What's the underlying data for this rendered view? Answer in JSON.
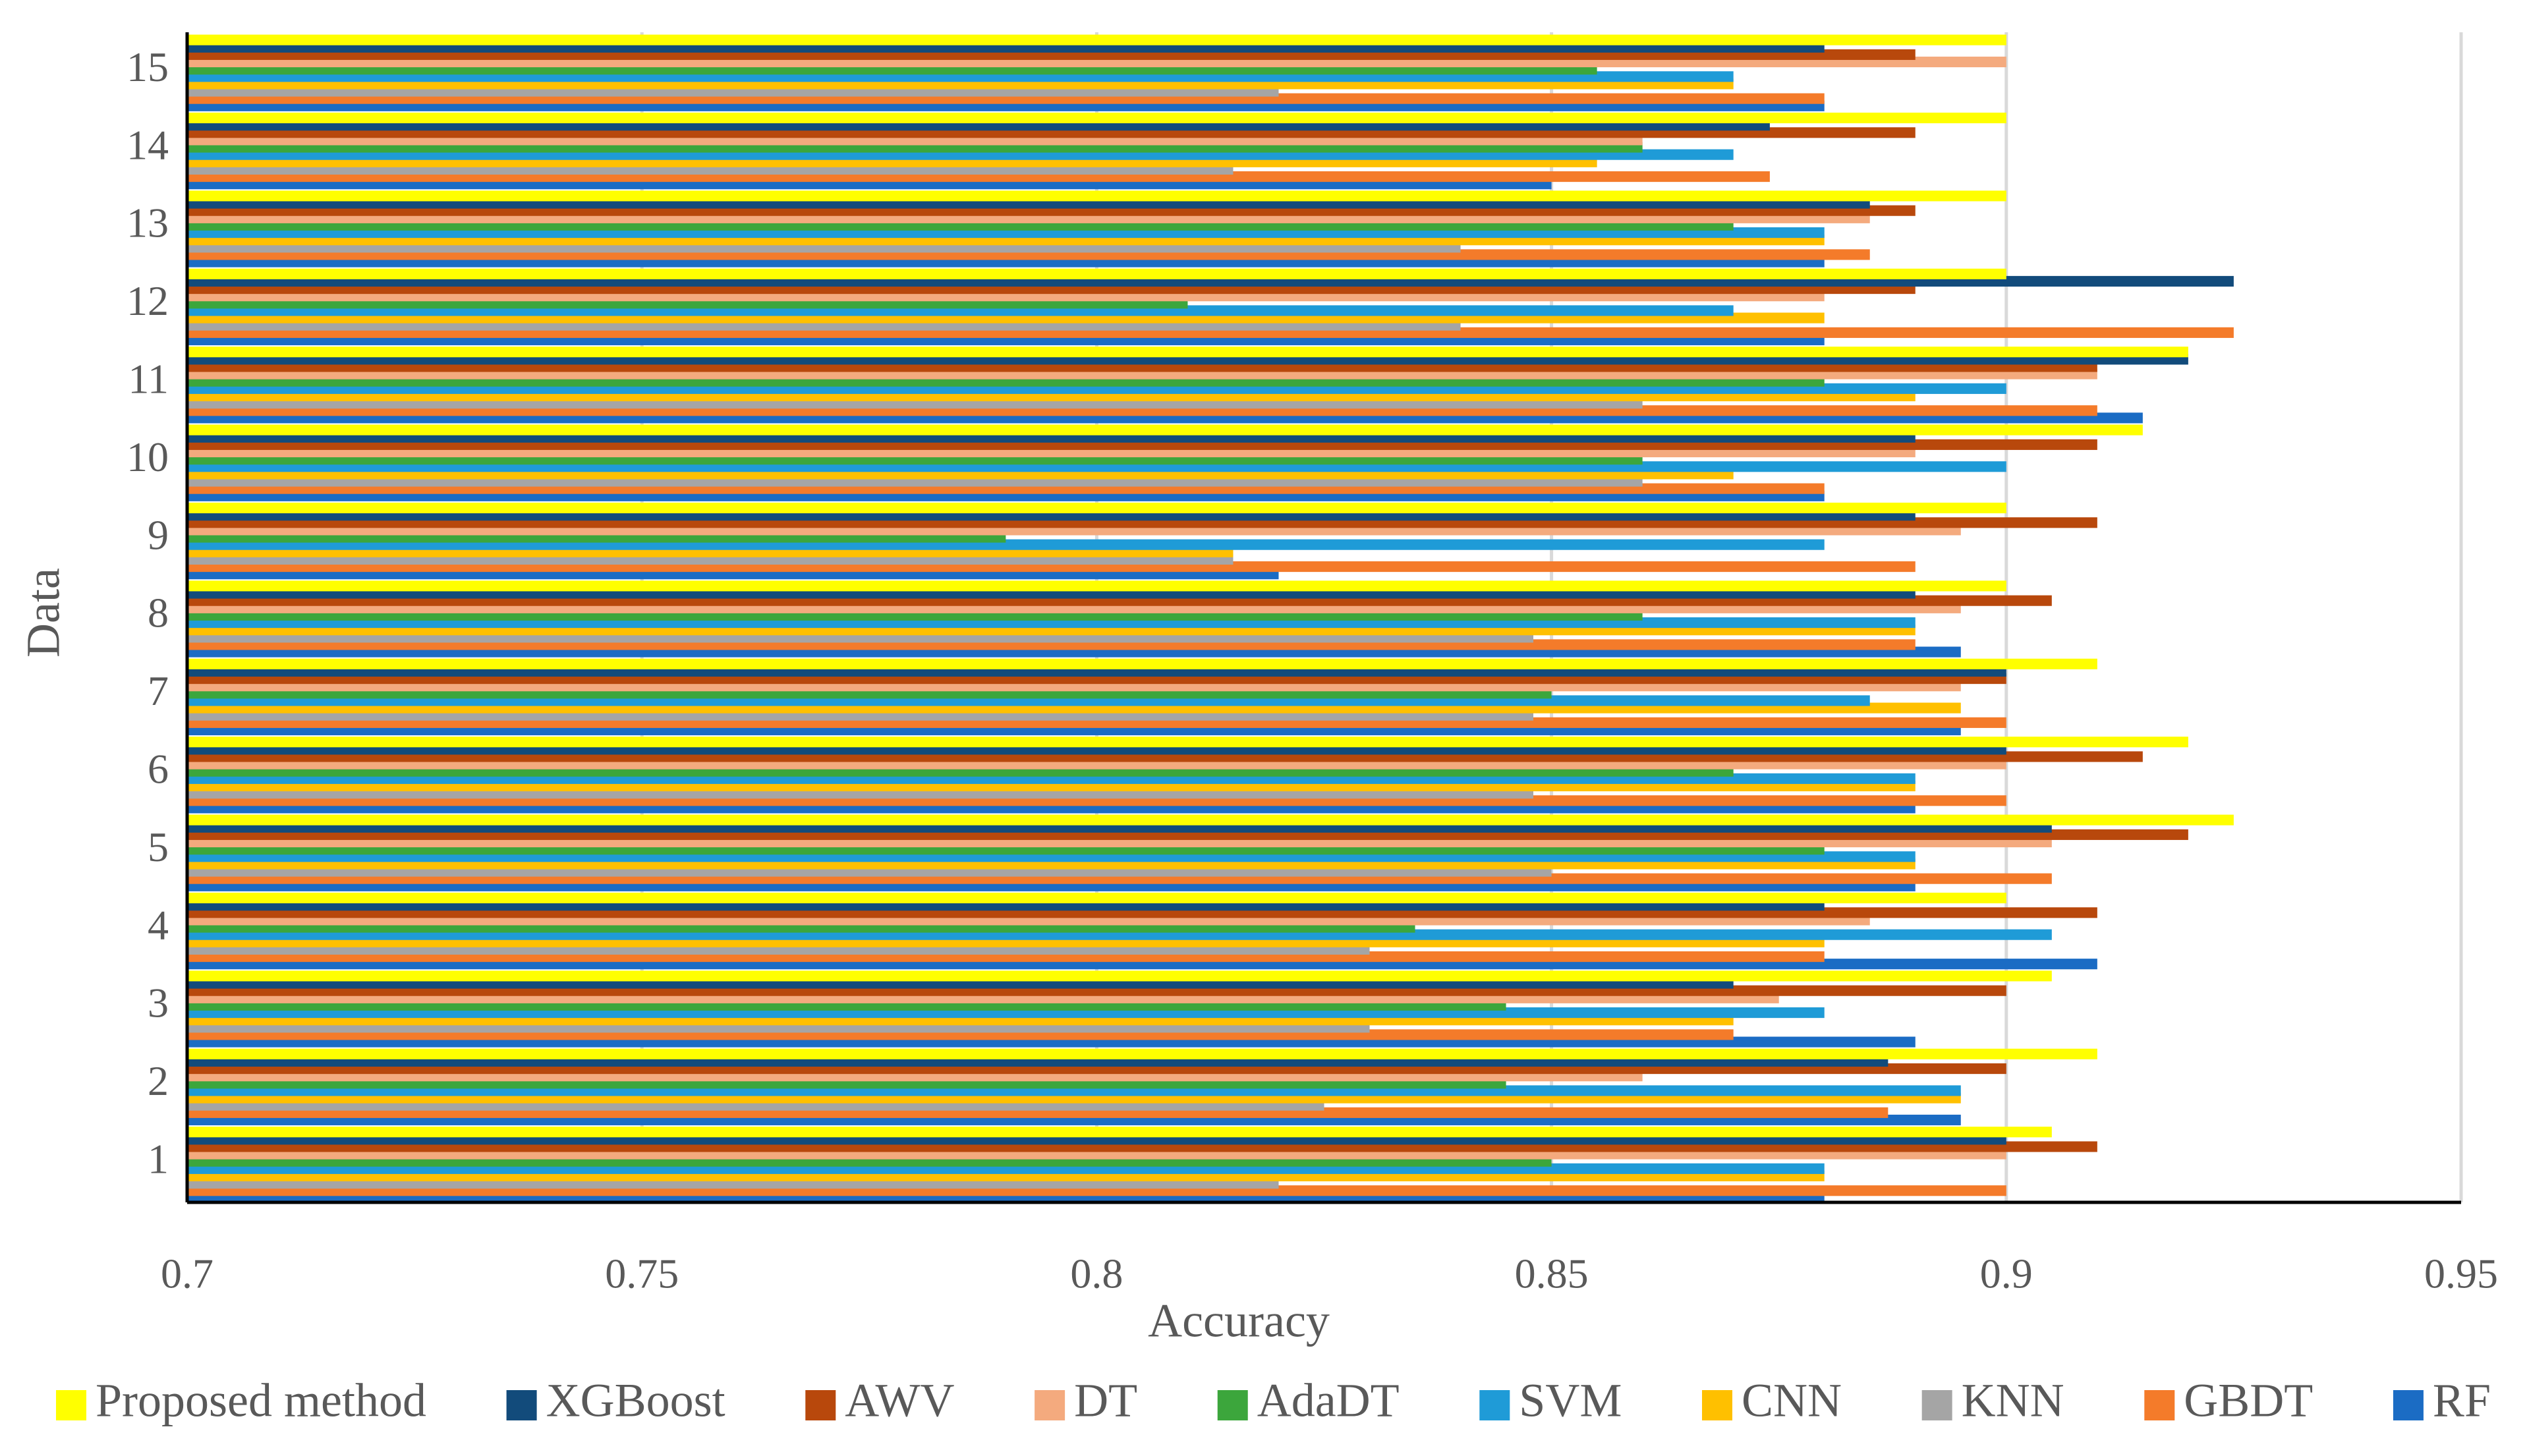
{
  "chart_data": {
    "type": "hbar",
    "xlabel": "Accuracy",
    "ylabel": "Data",
    "categories": [
      "1",
      "2",
      "3",
      "4",
      "5",
      "6",
      "7",
      "8",
      "9",
      "10",
      "11",
      "12",
      "13",
      "14",
      "15"
    ],
    "xlim": [
      0.7,
      0.95
    ],
    "xticks": [
      0.7,
      0.75,
      0.8,
      0.85,
      0.9,
      0.95
    ],
    "grid": true,
    "series": [
      {
        "name": "Proposed method",
        "color": "#ffff00",
        "values": [
          0.905,
          0.91,
          0.905,
          0.9,
          0.925,
          0.92,
          0.91,
          0.9,
          0.9,
          0.915,
          0.92,
          0.9,
          0.9,
          0.9,
          0.9
        ]
      },
      {
        "name": "XGBoost",
        "color": "#124b7b",
        "values": [
          0.9,
          0.887,
          0.87,
          0.88,
          0.905,
          0.9,
          0.9,
          0.89,
          0.89,
          0.89,
          0.92,
          0.925,
          0.885,
          0.874,
          0.88
        ]
      },
      {
        "name": "AWV",
        "color": "#b8480c",
        "values": [
          0.91,
          0.9,
          0.9,
          0.91,
          0.92,
          0.915,
          0.9,
          0.905,
          0.91,
          0.91,
          0.91,
          0.89,
          0.89,
          0.89,
          0.89
        ]
      },
      {
        "name": "DT",
        "color": "#f4aa7e",
        "values": [
          0.9,
          0.86,
          0.875,
          0.885,
          0.905,
          0.9,
          0.895,
          0.895,
          0.895,
          0.89,
          0.91,
          0.88,
          0.885,
          0.86,
          0.9
        ]
      },
      {
        "name": "AdaDT",
        "color": "#3ca63c",
        "values": [
          0.85,
          0.845,
          0.845,
          0.835,
          0.88,
          0.87,
          0.85,
          0.86,
          0.79,
          0.86,
          0.88,
          0.81,
          0.87,
          0.86,
          0.855
        ]
      },
      {
        "name": "SVM",
        "color": "#1f9bd7",
        "values": [
          0.88,
          0.895,
          0.88,
          0.905,
          0.89,
          0.89,
          0.885,
          0.89,
          0.88,
          0.9,
          0.9,
          0.87,
          0.88,
          0.87,
          0.87
        ]
      },
      {
        "name": "CNN",
        "color": "#ffc000",
        "values": [
          0.88,
          0.895,
          0.87,
          0.88,
          0.89,
          0.89,
          0.895,
          0.89,
          0.815,
          0.87,
          0.89,
          0.88,
          0.88,
          0.855,
          0.87
        ]
      },
      {
        "name": "KNN",
        "color": "#a5a5a5",
        "values": [
          0.82,
          0.825,
          0.83,
          0.83,
          0.85,
          0.848,
          0.848,
          0.848,
          0.815,
          0.86,
          0.86,
          0.84,
          0.84,
          0.815,
          0.82
        ]
      },
      {
        "name": "GBDT",
        "color": "#f47b2a",
        "values": [
          0.9,
          0.887,
          0.87,
          0.88,
          0.905,
          0.9,
          0.9,
          0.89,
          0.89,
          0.88,
          0.91,
          0.925,
          0.885,
          0.874,
          0.88
        ]
      },
      {
        "name": "RF",
        "color": "#1b6cc4",
        "values": [
          0.88,
          0.895,
          0.89,
          0.91,
          0.89,
          0.89,
          0.895,
          0.895,
          0.82,
          0.88,
          0.915,
          0.88,
          0.88,
          0.85,
          0.88
        ]
      }
    ]
  }
}
